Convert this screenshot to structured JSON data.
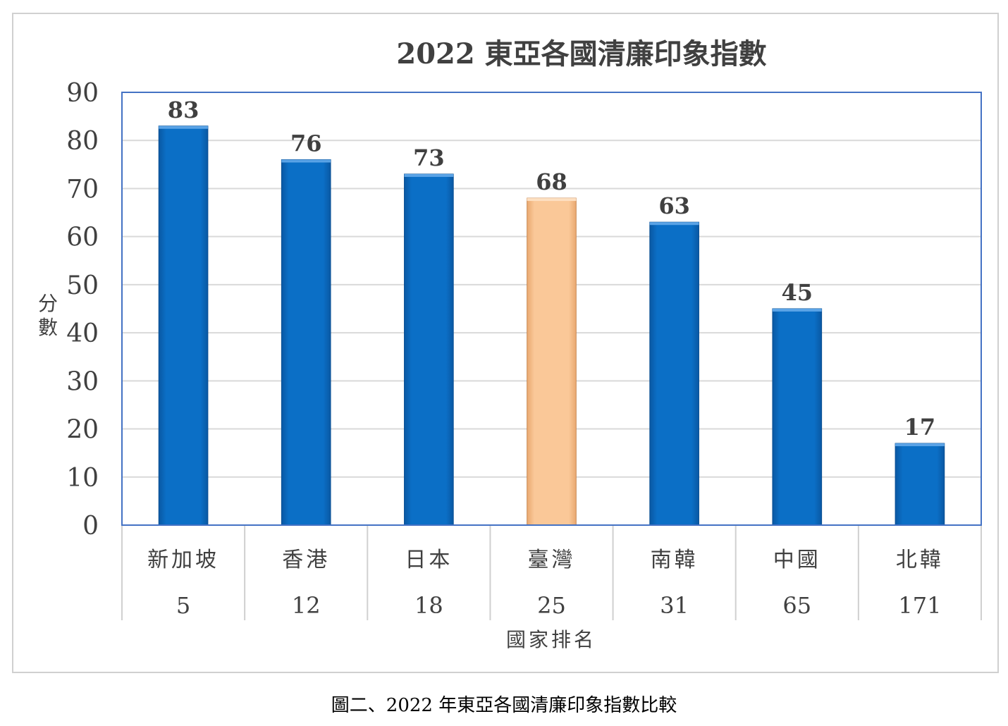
{
  "caption": "圖二、2022 年東亞各國清廉印象指數比較",
  "chart_data": {
    "type": "bar",
    "title": "2022 東亞各國清廉印象指數",
    "ylabel": "分數",
    "xlabel": "國家排名",
    "ylim": [
      0,
      90
    ],
    "yticks": [
      0,
      10,
      20,
      30,
      40,
      50,
      60,
      70,
      80,
      90
    ],
    "grid": true,
    "categories": [
      "新加坡",
      "香港",
      "日本",
      "臺灣",
      "南韓",
      "中國",
      "北韓"
    ],
    "ranks": [
      "5",
      "12",
      "18",
      "25",
      "31",
      "65",
      "171"
    ],
    "values": [
      83,
      76,
      73,
      68,
      63,
      45,
      17
    ],
    "colors": {
      "default_bar": "#0b6fc6",
      "highlight_bar": "#fac898",
      "axis_border": "#4472c4",
      "grid": "#d9d9d9",
      "text": "#404040"
    },
    "highlight_index": 3
  }
}
